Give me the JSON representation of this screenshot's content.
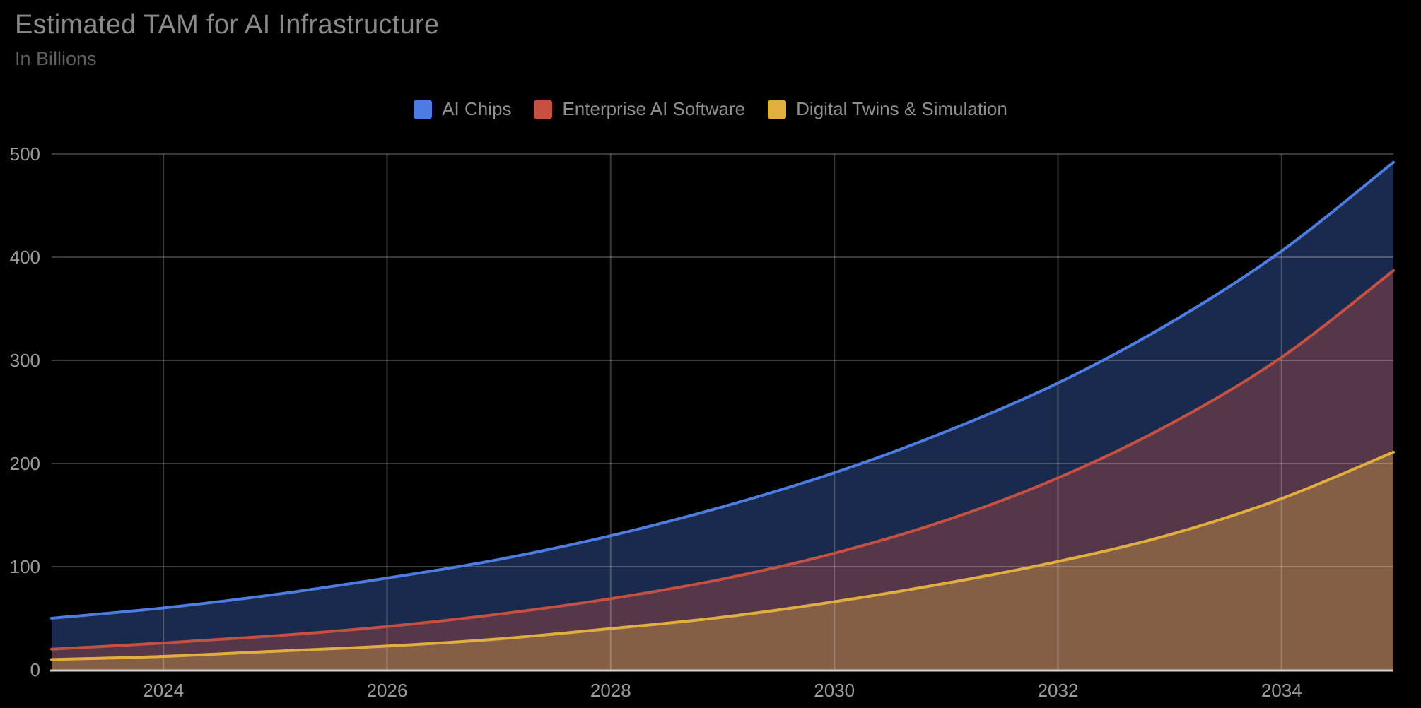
{
  "header": {
    "title": "Estimated TAM for AI Infrastructure",
    "subtitle": "In Billions"
  },
  "chart_data": {
    "type": "area",
    "title": "Estimated TAM for AI Infrastructure",
    "subtitle": "In Billions",
    "x": [
      2023,
      2024,
      2025,
      2026,
      2027,
      2028,
      2029,
      2030,
      2031,
      2032,
      2033,
      2034,
      2035
    ],
    "series": [
      {
        "name": "AI Chips",
        "color": "#4d7ce2",
        "values": [
          50,
          60,
          73,
          89,
          107,
          130,
          158,
          191,
          231,
          278,
          336,
          406,
          492
        ]
      },
      {
        "name": "Enterprise AI Software",
        "color": "#c65142",
        "values": [
          20,
          26,
          33,
          42,
          54,
          69,
          88,
          113,
          145,
          186,
          238,
          303,
          387
        ]
      },
      {
        "name": "Digital Twins & Simulation",
        "color": "#e2ae3f",
        "values": [
          10,
          13,
          18,
          23,
          30,
          40,
          51,
          66,
          84,
          105,
          131,
          166,
          211
        ]
      }
    ],
    "xlim": [
      2023,
      2035
    ],
    "ylim": [
      0,
      500
    ],
    "xticks": [
      2024,
      2026,
      2028,
      2030,
      2032,
      2034
    ],
    "yticks": [
      0,
      100,
      200,
      300,
      400,
      500
    ],
    "legend_position": "top-center",
    "grid": true,
    "style": {
      "background": "#000000",
      "fill_opacity": 0.34,
      "line_width": 4,
      "gridline_color": "rgba(255,255,255,0.22)",
      "axis_line_color": "#cfcfcf",
      "tick_label_color": "#9a9a9a"
    }
  }
}
